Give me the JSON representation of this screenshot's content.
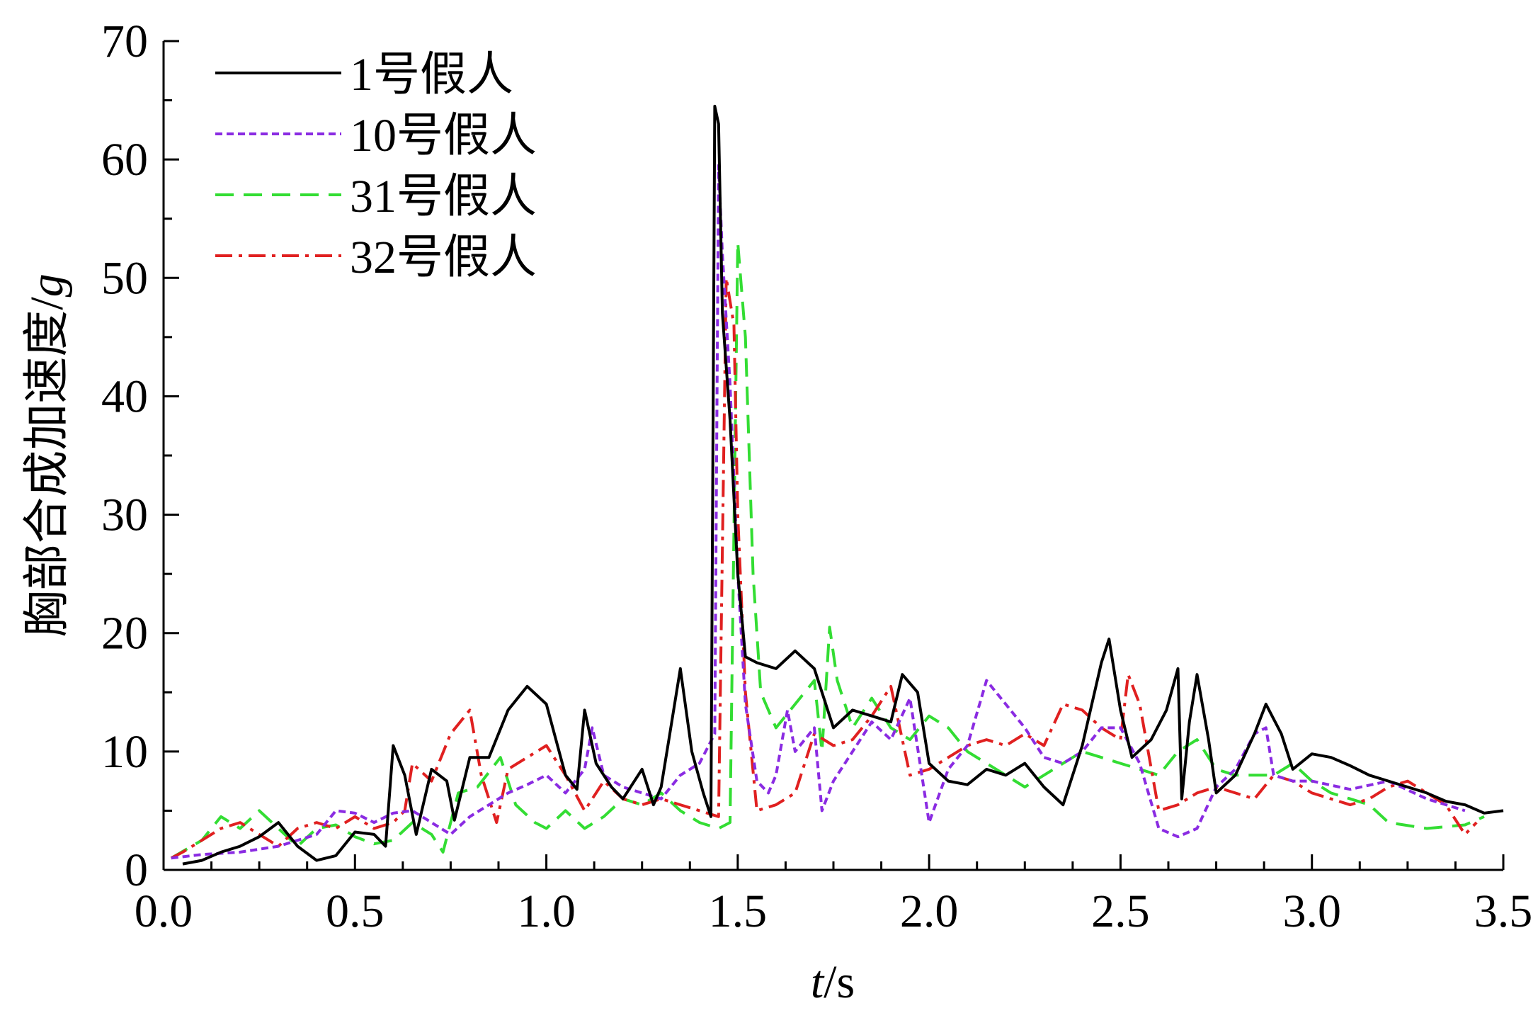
{
  "chart_data": {
    "type": "line",
    "title": "",
    "xlabel": {
      "var": "t",
      "unit": "/s"
    },
    "ylabel": {
      "text": "胸部合成加速度/",
      "unit": "g"
    },
    "xlim": [
      0,
      3.5
    ],
    "ylim": [
      0,
      70
    ],
    "xticks": [
      "0.0",
      "0.5",
      "1.0",
      "1.5",
      "2.0",
      "2.5",
      "3.0",
      "3.5"
    ],
    "yticks": [
      "0",
      "10",
      "20",
      "30",
      "40",
      "50",
      "60",
      "70"
    ],
    "grid": false,
    "legend_position": "top-left",
    "series": [
      {
        "name": "1号假人",
        "color": "#000000",
        "dash": "solid",
        "points": [
          [
            0.05,
            0.5
          ],
          [
            0.1,
            0.8
          ],
          [
            0.15,
            1.5
          ],
          [
            0.2,
            2.0
          ],
          [
            0.25,
            2.8
          ],
          [
            0.3,
            4.0
          ],
          [
            0.35,
            2.0
          ],
          [
            0.4,
            0.8
          ],
          [
            0.45,
            1.2
          ],
          [
            0.5,
            3.2
          ],
          [
            0.55,
            3.0
          ],
          [
            0.58,
            2.0
          ],
          [
            0.6,
            10.5
          ],
          [
            0.63,
            8.0
          ],
          [
            0.66,
            3.0
          ],
          [
            0.7,
            8.5
          ],
          [
            0.74,
            7.5
          ],
          [
            0.76,
            4.2
          ],
          [
            0.8,
            9.5
          ],
          [
            0.85,
            9.5
          ],
          [
            0.9,
            13.5
          ],
          [
            0.95,
            15.5
          ],
          [
            1.0,
            14.0
          ],
          [
            1.05,
            8.0
          ],
          [
            1.08,
            6.8
          ],
          [
            1.1,
            13.5
          ],
          [
            1.13,
            9.0
          ],
          [
            1.17,
            7.0
          ],
          [
            1.2,
            6.0
          ],
          [
            1.25,
            8.5
          ],
          [
            1.28,
            5.5
          ],
          [
            1.3,
            7.0
          ],
          [
            1.32,
            11.0
          ],
          [
            1.35,
            17.0
          ],
          [
            1.38,
            10.0
          ],
          [
            1.41,
            6.5
          ],
          [
            1.43,
            4.5
          ],
          [
            1.44,
            64.5
          ],
          [
            1.45,
            63.0
          ],
          [
            1.46,
            47.0
          ],
          [
            1.48,
            38.0
          ],
          [
            1.5,
            25.0
          ],
          [
            1.52,
            18.0
          ],
          [
            1.55,
            17.5
          ],
          [
            1.6,
            17.0
          ],
          [
            1.65,
            18.5
          ],
          [
            1.7,
            17.0
          ],
          [
            1.75,
            12.0
          ],
          [
            1.8,
            13.5
          ],
          [
            1.85,
            13.0
          ],
          [
            1.9,
            12.5
          ],
          [
            1.93,
            16.5
          ],
          [
            1.97,
            15.0
          ],
          [
            2.0,
            9.0
          ],
          [
            2.05,
            7.5
          ],
          [
            2.1,
            7.2
          ],
          [
            2.15,
            8.5
          ],
          [
            2.2,
            8.0
          ],
          [
            2.25,
            9.0
          ],
          [
            2.3,
            7.0
          ],
          [
            2.35,
            5.5
          ],
          [
            2.4,
            10.5
          ],
          [
            2.45,
            17.5
          ],
          [
            2.47,
            19.5
          ],
          [
            2.5,
            13.5
          ],
          [
            2.53,
            9.5
          ],
          [
            2.58,
            11.0
          ],
          [
            2.62,
            13.5
          ],
          [
            2.65,
            17.0
          ],
          [
            2.66,
            6.0
          ],
          [
            2.68,
            12.5
          ],
          [
            2.7,
            16.5
          ],
          [
            2.73,
            11.0
          ],
          [
            2.75,
            6.5
          ],
          [
            2.8,
            8.0
          ],
          [
            2.85,
            11.5
          ],
          [
            2.88,
            14.0
          ],
          [
            2.92,
            11.5
          ],
          [
            2.95,
            8.5
          ],
          [
            3.0,
            9.8
          ],
          [
            3.05,
            9.5
          ],
          [
            3.1,
            8.8
          ],
          [
            3.15,
            8.0
          ],
          [
            3.2,
            7.5
          ],
          [
            3.25,
            7.0
          ],
          [
            3.3,
            6.5
          ],
          [
            3.35,
            5.8
          ],
          [
            3.4,
            5.5
          ],
          [
            3.45,
            4.8
          ],
          [
            3.5,
            5.0
          ]
        ]
      },
      {
        "name": "10号假人",
        "color": "#8a2be2",
        "dash": "short-dash",
        "points": [
          [
            0.02,
            1.0
          ],
          [
            0.1,
            1.3
          ],
          [
            0.2,
            1.5
          ],
          [
            0.3,
            2.0
          ],
          [
            0.4,
            3.0
          ],
          [
            0.45,
            5.0
          ],
          [
            0.5,
            4.8
          ],
          [
            0.55,
            4.0
          ],
          [
            0.6,
            4.8
          ],
          [
            0.65,
            5.0
          ],
          [
            0.7,
            4.0
          ],
          [
            0.75,
            3.0
          ],
          [
            0.8,
            4.5
          ],
          [
            0.9,
            6.5
          ],
          [
            0.95,
            7.2
          ],
          [
            1.0,
            8.0
          ],
          [
            1.05,
            6.5
          ],
          [
            1.1,
            8.5
          ],
          [
            1.12,
            12.0
          ],
          [
            1.15,
            8.0
          ],
          [
            1.2,
            7.0
          ],
          [
            1.25,
            6.5
          ],
          [
            1.3,
            6.0
          ],
          [
            1.35,
            8.0
          ],
          [
            1.4,
            9.0
          ],
          [
            1.44,
            11.5
          ],
          [
            1.45,
            59.5
          ],
          [
            1.46,
            52.0
          ],
          [
            1.48,
            41.0
          ],
          [
            1.5,
            25.0
          ],
          [
            1.52,
            14.0
          ],
          [
            1.55,
            7.5
          ],
          [
            1.58,
            6.5
          ],
          [
            1.6,
            8.0
          ],
          [
            1.63,
            13.5
          ],
          [
            1.65,
            10.0
          ],
          [
            1.7,
            12.0
          ],
          [
            1.72,
            5.0
          ],
          [
            1.75,
            7.5
          ],
          [
            1.8,
            10.0
          ],
          [
            1.85,
            12.5
          ],
          [
            1.9,
            11.0
          ],
          [
            1.95,
            14.5
          ],
          [
            2.0,
            4.0
          ],
          [
            2.05,
            8.5
          ],
          [
            2.1,
            10.5
          ],
          [
            2.15,
            16.0
          ],
          [
            2.2,
            14.0
          ],
          [
            2.25,
            12.0
          ],
          [
            2.3,
            9.5
          ],
          [
            2.35,
            9.0
          ],
          [
            2.4,
            10.0
          ],
          [
            2.45,
            12.0
          ],
          [
            2.5,
            12.0
          ],
          [
            2.55,
            9.0
          ],
          [
            2.6,
            3.5
          ],
          [
            2.65,
            2.8
          ],
          [
            2.7,
            3.5
          ],
          [
            2.75,
            7.0
          ],
          [
            2.8,
            8.5
          ],
          [
            2.85,
            11.5
          ],
          [
            2.88,
            12.0
          ],
          [
            2.9,
            8.0
          ],
          [
            2.95,
            7.5
          ],
          [
            3.0,
            7.5
          ],
          [
            3.1,
            6.8
          ],
          [
            3.2,
            7.5
          ],
          [
            3.3,
            6.0
          ],
          [
            3.4,
            5.0
          ]
        ]
      },
      {
        "name": "31号假人",
        "color": "#33dd33",
        "dash": "long-dash",
        "points": [
          [
            0.02,
            1.0
          ],
          [
            0.1,
            2.5
          ],
          [
            0.15,
            4.5
          ],
          [
            0.2,
            3.5
          ],
          [
            0.25,
            5.0
          ],
          [
            0.3,
            3.5
          ],
          [
            0.35,
            2.0
          ],
          [
            0.4,
            3.5
          ],
          [
            0.45,
            3.8
          ],
          [
            0.5,
            2.8
          ],
          [
            0.55,
            2.2
          ],
          [
            0.6,
            2.5
          ],
          [
            0.65,
            4.0
          ],
          [
            0.7,
            3.0
          ],
          [
            0.73,
            1.5
          ],
          [
            0.77,
            6.5
          ],
          [
            0.82,
            7.0
          ],
          [
            0.88,
            9.5
          ],
          [
            0.92,
            5.5
          ],
          [
            0.97,
            4.0
          ],
          [
            1.0,
            3.5
          ],
          [
            1.05,
            5.0
          ],
          [
            1.1,
            3.5
          ],
          [
            1.15,
            4.5
          ],
          [
            1.2,
            6.0
          ],
          [
            1.25,
            5.5
          ],
          [
            1.3,
            6.5
          ],
          [
            1.35,
            5.0
          ],
          [
            1.4,
            4.0
          ],
          [
            1.45,
            3.5
          ],
          [
            1.48,
            4.0
          ],
          [
            1.5,
            53.0
          ],
          [
            1.52,
            45.0
          ],
          [
            1.54,
            25.0
          ],
          [
            1.56,
            15.0
          ],
          [
            1.6,
            12.0
          ],
          [
            1.65,
            14.0
          ],
          [
            1.7,
            16.0
          ],
          [
            1.72,
            10.0
          ],
          [
            1.74,
            20.5
          ],
          [
            1.76,
            16.0
          ],
          [
            1.8,
            12.0
          ],
          [
            1.85,
            14.5
          ],
          [
            1.9,
            12.0
          ],
          [
            1.95,
            11.0
          ],
          [
            2.0,
            13.0
          ],
          [
            2.05,
            12.0
          ],
          [
            2.1,
            10.0
          ],
          [
            2.15,
            9.0
          ],
          [
            2.2,
            8.0
          ],
          [
            2.25,
            7.0
          ],
          [
            2.3,
            8.0
          ],
          [
            2.35,
            9.0
          ],
          [
            2.4,
            10.0
          ],
          [
            2.45,
            9.5
          ],
          [
            2.5,
            9.0
          ],
          [
            2.55,
            8.5
          ],
          [
            2.6,
            8.0
          ],
          [
            2.65,
            10.0
          ],
          [
            2.7,
            11.0
          ],
          [
            2.75,
            8.5
          ],
          [
            2.8,
            8.0
          ],
          [
            2.85,
            8.0
          ],
          [
            2.9,
            8.0
          ],
          [
            2.95,
            9.0
          ],
          [
            3.0,
            7.5
          ],
          [
            3.05,
            6.5
          ],
          [
            3.1,
            6.0
          ],
          [
            3.15,
            5.5
          ],
          [
            3.2,
            4.0
          ],
          [
            3.3,
            3.5
          ],
          [
            3.4,
            3.8
          ],
          [
            3.45,
            4.5
          ]
        ]
      },
      {
        "name": "32号假人",
        "color": "#e02020",
        "dash": "dash-dot",
        "points": [
          [
            0.02,
            1.0
          ],
          [
            0.05,
            1.5
          ],
          [
            0.1,
            2.5
          ],
          [
            0.15,
            3.5
          ],
          [
            0.2,
            4.0
          ],
          [
            0.25,
            3.0
          ],
          [
            0.3,
            2.0
          ],
          [
            0.35,
            3.5
          ],
          [
            0.4,
            4.0
          ],
          [
            0.45,
            3.5
          ],
          [
            0.5,
            4.5
          ],
          [
            0.55,
            3.5
          ],
          [
            0.6,
            4.0
          ],
          [
            0.63,
            5.0
          ],
          [
            0.65,
            9.0
          ],
          [
            0.7,
            7.5
          ],
          [
            0.75,
            11.5
          ],
          [
            0.8,
            13.5
          ],
          [
            0.83,
            8.0
          ],
          [
            0.87,
            4.0
          ],
          [
            0.9,
            8.5
          ],
          [
            0.95,
            9.5
          ],
          [
            1.0,
            10.5
          ],
          [
            1.05,
            8.0
          ],
          [
            1.1,
            5.0
          ],
          [
            1.15,
            7.5
          ],
          [
            1.2,
            6.0
          ],
          [
            1.25,
            5.5
          ],
          [
            1.3,
            6.0
          ],
          [
            1.35,
            5.5
          ],
          [
            1.4,
            5.0
          ],
          [
            1.45,
            4.5
          ],
          [
            1.47,
            50.0
          ],
          [
            1.49,
            46.0
          ],
          [
            1.5,
            30.0
          ],
          [
            1.52,
            15.0
          ],
          [
            1.55,
            5.0
          ],
          [
            1.6,
            5.5
          ],
          [
            1.65,
            6.5
          ],
          [
            1.7,
            11.5
          ],
          [
            1.75,
            10.5
          ],
          [
            1.8,
            11.0
          ],
          [
            1.85,
            13.0
          ],
          [
            1.9,
            15.5
          ],
          [
            1.95,
            8.0
          ],
          [
            2.0,
            8.5
          ],
          [
            2.05,
            9.5
          ],
          [
            2.1,
            10.5
          ],
          [
            2.15,
            11.0
          ],
          [
            2.2,
            10.5
          ],
          [
            2.25,
            11.5
          ],
          [
            2.3,
            10.5
          ],
          [
            2.35,
            14.0
          ],
          [
            2.4,
            13.5
          ],
          [
            2.45,
            12.0
          ],
          [
            2.5,
            11.0
          ],
          [
            2.52,
            16.5
          ],
          [
            2.55,
            14.0
          ],
          [
            2.6,
            5.0
          ],
          [
            2.65,
            5.5
          ],
          [
            2.7,
            6.5
          ],
          [
            2.75,
            7.0
          ],
          [
            2.8,
            6.5
          ],
          [
            2.85,
            6.0
          ],
          [
            2.9,
            8.0
          ],
          [
            2.95,
            7.5
          ],
          [
            3.0,
            6.5
          ],
          [
            3.05,
            6.0
          ],
          [
            3.1,
            5.5
          ],
          [
            3.15,
            6.0
          ],
          [
            3.2,
            7.0
          ],
          [
            3.25,
            7.5
          ],
          [
            3.3,
            6.5
          ],
          [
            3.35,
            5.5
          ],
          [
            3.4,
            3.0
          ],
          [
            3.43,
            4.0
          ]
        ]
      }
    ]
  }
}
